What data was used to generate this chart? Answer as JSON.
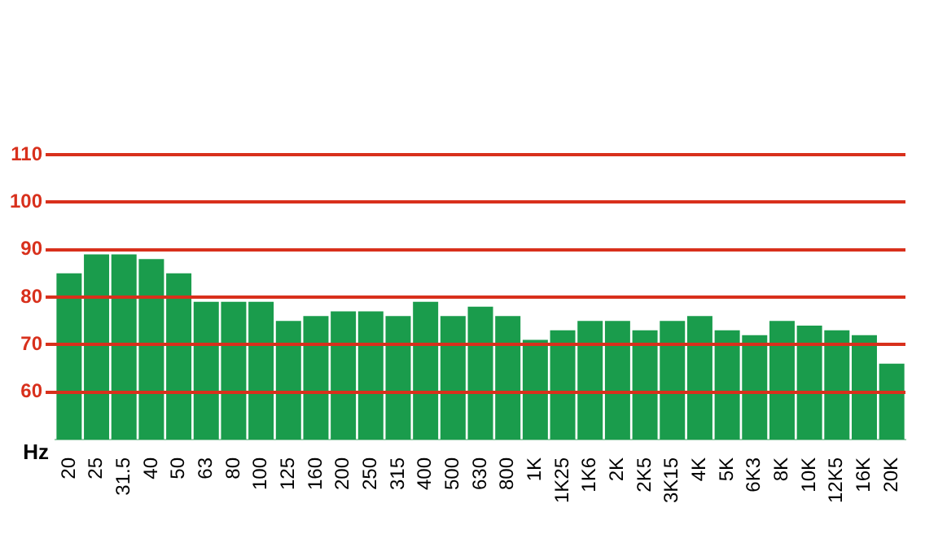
{
  "chart_data": {
    "type": "bar",
    "xlabel": "Hz",
    "categories": [
      "20",
      "25",
      "31.5",
      "40",
      "50",
      "63",
      "80",
      "100",
      "125",
      "160",
      "200",
      "250",
      "315",
      "400",
      "500",
      "630",
      "800",
      "1K",
      "1K25",
      "1K6",
      "2K",
      "2K5",
      "3K15",
      "4K",
      "5K",
      "6K3",
      "8K",
      "10K",
      "12K5",
      "16K",
      "20K"
    ],
    "values": [
      85,
      89,
      89,
      88,
      85,
      79,
      79,
      79,
      75,
      76,
      77,
      77,
      76,
      79,
      76,
      78,
      76,
      71,
      73,
      75,
      75,
      73,
      75,
      76,
      73,
      72,
      75,
      74,
      73,
      72,
      66
    ],
    "color": "#1a9c4c",
    "ylim": [
      50,
      110
    ],
    "yticks": [
      60,
      70,
      80,
      90,
      100,
      110
    ],
    "grid": "y"
  }
}
